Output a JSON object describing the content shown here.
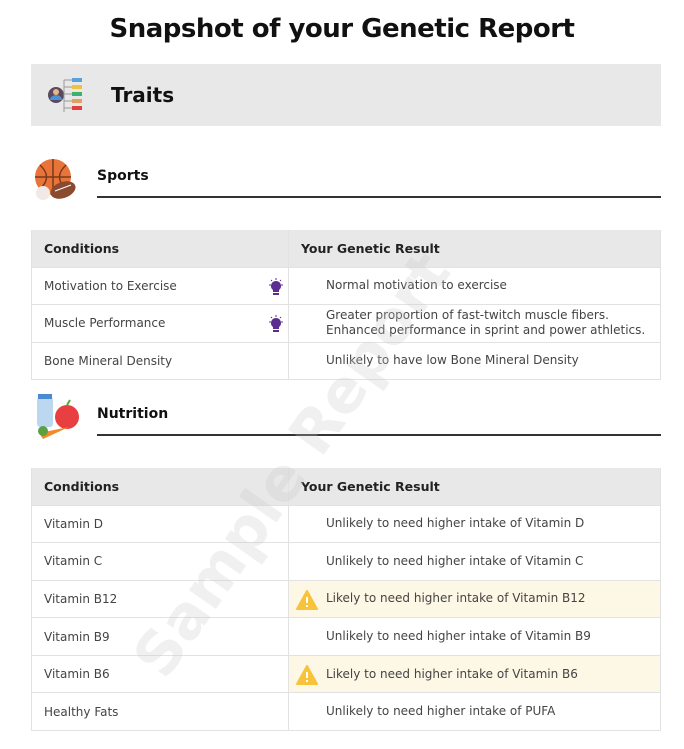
{
  "title": "Snapshot of your Genetic Report",
  "traits_label": "Traits",
  "watermark": "Sample Report",
  "colors": {
    "header_bg": "#e8e8e8",
    "warning": "#f7c33b",
    "highlight": "#fdf7e6",
    "bulb": "#5b2d91"
  },
  "sports": {
    "title": "Sports",
    "headers": [
      "Conditions",
      "Your Genetic Result"
    ],
    "rows": [
      {
        "condition": "Motivation to Exercise",
        "result": "Normal motivation to exercise",
        "icon": "lightbulb-icon"
      },
      {
        "condition": "Muscle Performance",
        "result": "Greater proportion of fast-twitch muscle fibers.",
        "result2": "Enhanced performance in sprint and power athletics.",
        "icon": "lightbulb-icon"
      },
      {
        "condition": "Bone Mineral Density",
        "result": "Unlikely to have low Bone Mineral Density"
      }
    ]
  },
  "nutrition": {
    "title": "Nutrition",
    "headers": [
      "Conditions",
      "Your Genetic Result"
    ],
    "rows": [
      {
        "condition": "Vitamin D",
        "result": "Unlikely to need higher intake of Vitamin D"
      },
      {
        "condition": "Vitamin C",
        "result": "Unlikely to need higher intake of Vitamin C"
      },
      {
        "condition": "Vitamin B12",
        "result": "Likely to need higher intake of Vitamin B12",
        "icon": "warning-icon"
      },
      {
        "condition": "Vitamin B9",
        "result": "Unlikely to need higher intake of Vitamin B9"
      },
      {
        "condition": "Vitamin B6",
        "result": "Likely to need higher intake of Vitamin B6",
        "icon": "warning-icon"
      },
      {
        "condition": "Healthy Fats",
        "result": "Unlikely to need higher intake of PUFA"
      }
    ]
  }
}
